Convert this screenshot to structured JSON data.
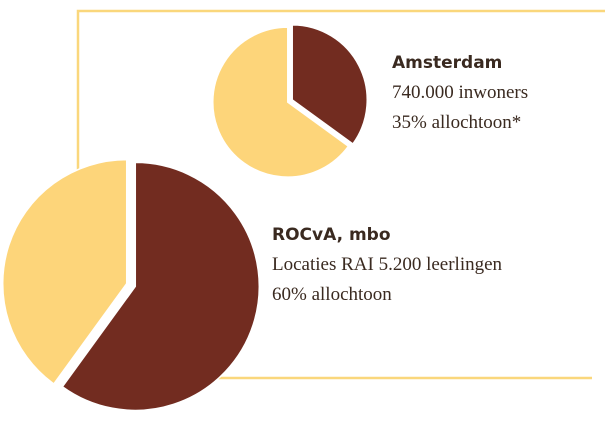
{
  "chart_data": [
    {
      "type": "pie",
      "title": "Amsterdam",
      "subtitle": "740.000 inwoners",
      "values": [
        35,
        65
      ],
      "value_labels": [
        "35% allochtoon*",
        null
      ],
      "colors": [
        "#722c20",
        "#fdd57a"
      ]
    },
    {
      "type": "pie",
      "title": "ROCvA, mbo",
      "subtitle": "Locaties RAI 5.200 leerlingen",
      "values": [
        60,
        40
      ],
      "value_labels": [
        "60% allochtoon",
        null
      ],
      "colors": [
        "#722c20",
        "#fdd57a"
      ]
    }
  ]
}
